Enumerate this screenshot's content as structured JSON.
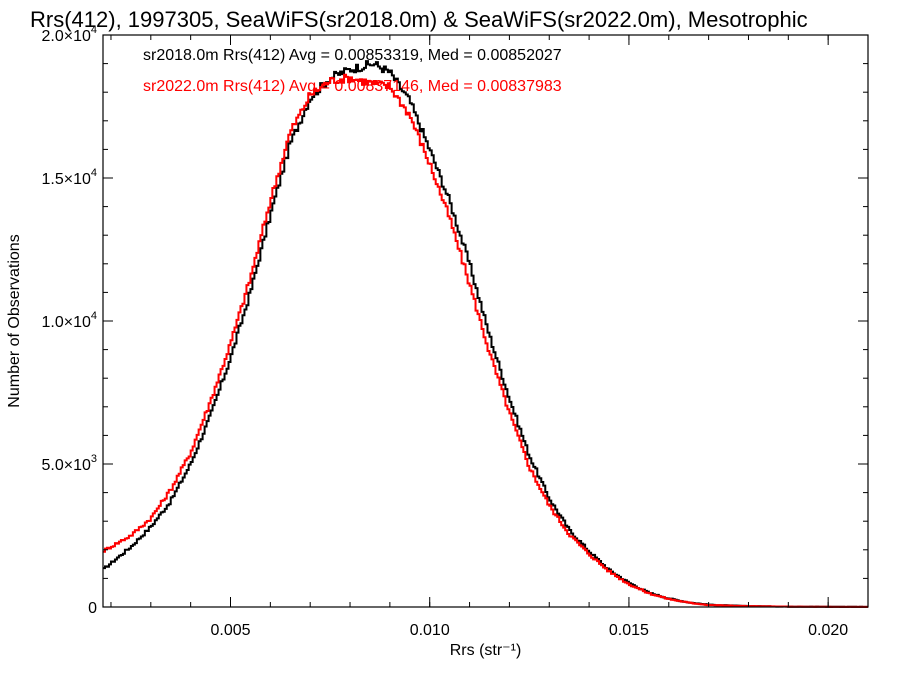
{
  "chart_data": {
    "type": "line",
    "title": "Rrs(412), 1997305, SeaWiFS(sr2018.0m) & SeaWiFS(sr2022.0m), Mesotrophic",
    "xlabel": "Rrs (str⁻¹)",
    "ylabel": "Number of Observations",
    "xlim": [
      0.0018,
      0.021
    ],
    "ylim": [
      0,
      20000
    ],
    "x_ticks": [
      {
        "value": 0.005,
        "label": "0.005"
      },
      {
        "value": 0.01,
        "label": "0.010"
      },
      {
        "value": 0.015,
        "label": "0.015"
      },
      {
        "value": 0.02,
        "label": "0.020"
      }
    ],
    "y_ticks": [
      {
        "value": 0,
        "mant": "0",
        "exp": ""
      },
      {
        "value": 5000,
        "mant": "5.0×10",
        "exp": "3"
      },
      {
        "value": 10000,
        "mant": "1.0×10",
        "exp": "4"
      },
      {
        "value": 15000,
        "mant": "1.5×10",
        "exp": "4"
      },
      {
        "value": 20000,
        "mant": "2.0×10",
        "exp": "4"
      }
    ],
    "grid": false,
    "legend_position": "top-left",
    "series": [
      {
        "name": "sr2018.0m Rrs(412) Avg = 0.00853319, Med = 0.00852027",
        "color": "#000000",
        "x": [
          0.0018,
          0.0025,
          0.003,
          0.0035,
          0.004,
          0.0045,
          0.005,
          0.0055,
          0.006,
          0.0065,
          0.007,
          0.0075,
          0.008,
          0.0083,
          0.0086,
          0.009,
          0.0095,
          0.01,
          0.0105,
          0.011,
          0.0115,
          0.012,
          0.0125,
          0.013,
          0.0135,
          0.014,
          0.0145,
          0.015,
          0.0155,
          0.016,
          0.0165,
          0.017,
          0.018,
          0.019,
          0.02,
          0.021
        ],
        "y": [
          1300,
          2100,
          2800,
          3700,
          5000,
          6700,
          8700,
          11000,
          13700,
          16200,
          17800,
          18500,
          18800,
          18900,
          19000,
          18700,
          17700,
          16000,
          14200,
          12000,
          9500,
          7300,
          5300,
          3800,
          2700,
          1950,
          1300,
          850,
          500,
          300,
          160,
          80,
          30,
          15,
          8,
          5
        ]
      },
      {
        "name": "sr2022.0m Rrs(412) Avg = 0.00837146, Med = 0.00837983",
        "color": "#ff0000",
        "x": [
          0.0018,
          0.0025,
          0.003,
          0.0035,
          0.004,
          0.0045,
          0.005,
          0.0055,
          0.006,
          0.0065,
          0.007,
          0.0075,
          0.008,
          0.0083,
          0.0086,
          0.009,
          0.0095,
          0.01,
          0.0105,
          0.011,
          0.0115,
          0.012,
          0.0125,
          0.013,
          0.0135,
          0.014,
          0.0145,
          0.015,
          0.0155,
          0.016,
          0.0165,
          0.017,
          0.018,
          0.019,
          0.02,
          0.021
        ],
        "y": [
          1950,
          2500,
          3100,
          4100,
          5400,
          7200,
          9200,
          11500,
          14200,
          16600,
          17900,
          18400,
          18500,
          18400,
          18300,
          18200,
          17200,
          15500,
          13600,
          11300,
          8900,
          6800,
          4900,
          3550,
          2550,
          1850,
          1250,
          800,
          480,
          280,
          150,
          70,
          28,
          12,
          6,
          4
        ]
      }
    ]
  }
}
